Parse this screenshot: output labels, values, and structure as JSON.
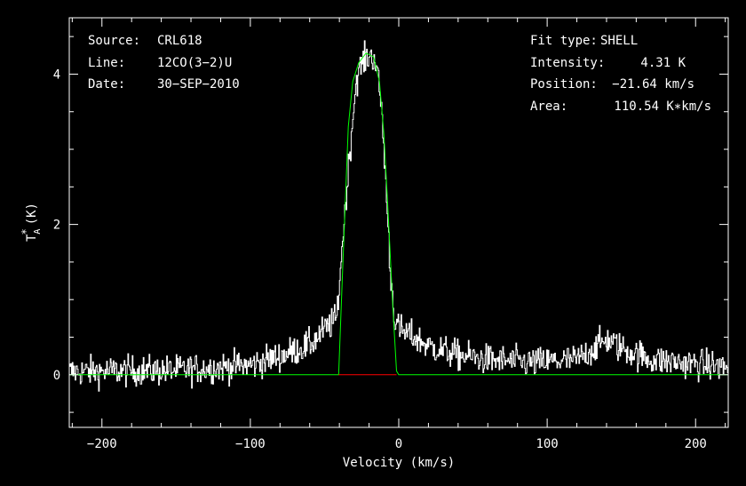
{
  "chart_data": {
    "type": "line",
    "xlabel": "Velocity (km/s)",
    "ylabel_main": "T",
    "ylabel_sup": "*",
    "ylabel_sub": "A",
    "ylabel_units": "(K)",
    "xlim": [
      -222,
      222
    ],
    "ylim": [
      -0.7,
      4.75
    ],
    "xticks": [
      -200,
      -100,
      0,
      100,
      200
    ],
    "xtick_labels": [
      "−200",
      "−100",
      "0",
      "100",
      "200"
    ],
    "yticks": [
      0,
      2,
      4
    ],
    "ytick_labels": [
      "0",
      "2",
      "4"
    ],
    "grid": false,
    "series": [
      {
        "role": "observed spectrum",
        "color": "#ffffff",
        "noise_rms": 0.1,
        "profile": [
          [
            -222,
            0.04
          ],
          [
            -150,
            0.06
          ],
          [
            -100,
            0.13
          ],
          [
            -80,
            0.25
          ],
          [
            -60,
            0.4
          ],
          [
            -50,
            0.6
          ],
          [
            -42,
            0.75
          ],
          [
            -38,
            1.8
          ],
          [
            -33,
            3.0
          ],
          [
            -29,
            3.9
          ],
          [
            -25,
            4.15
          ],
          [
            -20,
            4.25
          ],
          [
            -16,
            4.2
          ],
          [
            -12,
            3.6
          ],
          [
            -9,
            2.6
          ],
          [
            -6,
            1.4
          ],
          [
            -3,
            0.75
          ],
          [
            0,
            0.6
          ],
          [
            10,
            0.5
          ],
          [
            20,
            0.38
          ],
          [
            40,
            0.26
          ],
          [
            60,
            0.2
          ],
          [
            90,
            0.16
          ],
          [
            120,
            0.2
          ],
          [
            140,
            0.47
          ],
          [
            150,
            0.35
          ],
          [
            170,
            0.2
          ],
          [
            222,
            0.1
          ]
        ]
      },
      {
        "role": "shell fit",
        "color": "#00ff00",
        "points": [
          [
            -222,
            0
          ],
          [
            -40.5,
            0
          ],
          [
            -38,
            1.3
          ],
          [
            -34,
            3.3
          ],
          [
            -31,
            3.9
          ],
          [
            -27,
            4.15
          ],
          [
            -22,
            4.28
          ],
          [
            -17,
            4.23
          ],
          [
            -13,
            3.9
          ],
          [
            -10,
            3.2
          ],
          [
            -7,
            2.1
          ],
          [
            -4,
            0.9
          ],
          [
            -1.5,
            0.05
          ],
          [
            0,
            0
          ],
          [
            222,
            0
          ]
        ]
      },
      {
        "role": "baseline window",
        "color": "#ff0000",
        "points": [
          [
            -40.5,
            0
          ],
          [
            -1.5,
            0
          ]
        ]
      }
    ],
    "annotations_left": [
      {
        "key": "Source:",
        "value": "CRL618"
      },
      {
        "key": "Line:",
        "value": "12CO(3−2)U"
      },
      {
        "key": "Date:",
        "value": "30−SEP−2010"
      }
    ],
    "annotations_right": [
      {
        "key": "Fit type:",
        "value": "SHELL"
      },
      {
        "key": "Intensity:",
        "value": "4.31 K"
      },
      {
        "key": "Position:",
        "value": "−21.64 km/s"
      },
      {
        "key": "Area:",
        "value": "110.54 K∗km/s"
      }
    ]
  }
}
